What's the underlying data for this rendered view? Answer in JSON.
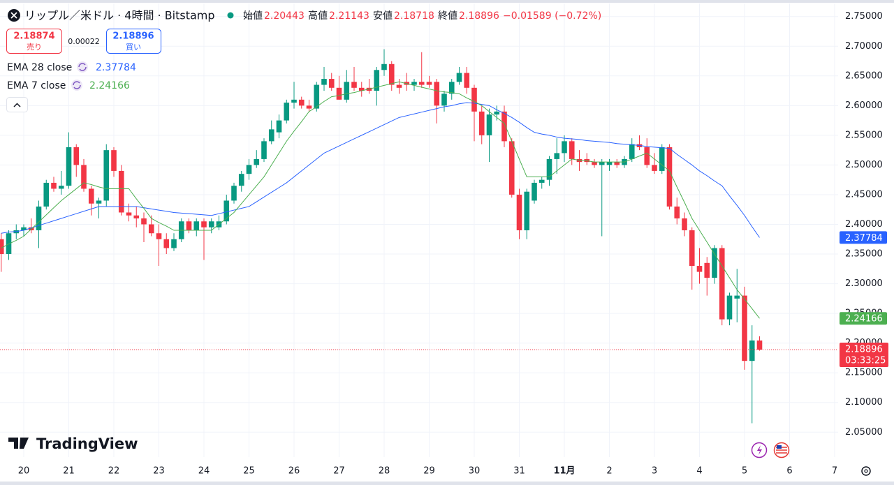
{
  "chart_data": {
    "type": "candlestick",
    "title": "リップル／米ドル · 4時間 · Bitstamp",
    "ohlc_labels": {
      "open": "始値",
      "high": "高値",
      "low": "安値",
      "close": "終値"
    },
    "change": "−0.01589 (−0.72%)",
    "trade": {
      "sell": 2.18874,
      "sell_label": "売り",
      "spread": 0.00022,
      "buy_label": "買い"
    },
    "countdown": "03:33:25",
    "watermark": "TradingView",
    "up_color": "#089981",
    "down_color": "#f23645",
    "grid": true,
    "categories": [
      null,
      null,
      null,
      "20",
      null,
      null,
      null,
      null,
      null,
      "21",
      null,
      null,
      null,
      null,
      null,
      "22",
      null,
      null,
      null,
      null,
      null,
      "23",
      null,
      null,
      null,
      null,
      null,
      "24",
      null,
      null,
      null,
      null,
      null,
      "25",
      null,
      null,
      null,
      null,
      null,
      "26",
      null,
      null,
      null,
      null,
      null,
      "27",
      null,
      null,
      null,
      null,
      null,
      "28",
      null,
      null,
      null,
      null,
      null,
      "29",
      null,
      null,
      null,
      null,
      null,
      "30",
      null,
      null,
      null,
      null,
      null,
      "31",
      null,
      null,
      null,
      null,
      null,
      "11月",
      null,
      null,
      null,
      null,
      null,
      "2",
      null,
      null,
      null,
      null,
      null,
      "3",
      null,
      null,
      null,
      null,
      null,
      "4",
      null,
      null,
      null,
      null,
      null,
      "5",
      null,
      null,
      null,
      null,
      null,
      "6",
      null,
      null,
      null,
      null,
      null,
      "7"
    ],
    "ohlc": {
      "open": [
        2.375,
        2.35,
        2.385,
        2.39,
        2.395,
        2.39,
        2.43,
        2.47,
        2.46,
        2.465,
        2.53,
        2.5,
        2.46,
        2.435,
        2.44,
        2.525,
        2.49,
        2.42,
        2.415,
        2.41,
        2.4,
        2.385,
        2.375,
        2.36,
        2.375,
        2.405,
        2.39,
        2.405,
        2.395,
        2.395,
        2.405,
        2.44,
        2.465,
        2.485,
        2.5,
        2.51,
        2.54,
        2.555,
        2.575,
        2.605,
        2.61,
        2.6,
        2.595,
        2.635,
        2.645,
        2.63,
        2.61,
        2.64,
        2.63,
        2.63,
        2.625,
        2.66,
        2.67,
        2.635,
        2.64,
        2.635,
        2.64,
        2.64,
        2.64,
        2.6,
        2.62,
        2.64,
        2.655,
        2.63,
        2.59,
        2.55,
        2.585,
        2.59,
        2.54,
        2.45,
        2.39,
        2.44,
        2.47,
        2.475,
        2.51,
        2.52,
        2.54,
        2.51,
        2.51,
        2.505,
        2.5,
        2.5,
        2.505,
        2.5,
        2.51,
        2.535,
        2.53,
        2.5,
        2.49,
        2.53,
        2.43,
        2.41,
        2.39,
        2.33,
        2.335,
        2.31,
        2.36,
        2.24,
        2.275,
        2.28,
        2.17,
        2.20443,
        null,
        null,
        null,
        null,
        null,
        null,
        null,
        null,
        null,
        null
      ],
      "high": [
        2.385,
        2.39,
        2.4,
        2.4,
        2.41,
        2.44,
        2.475,
        2.48,
        2.49,
        2.555,
        2.535,
        2.51,
        2.465,
        2.445,
        2.535,
        2.53,
        2.5,
        2.435,
        2.43,
        2.42,
        2.415,
        2.4,
        2.385,
        2.385,
        2.41,
        2.41,
        2.41,
        2.41,
        2.41,
        2.415,
        2.45,
        2.47,
        2.49,
        2.51,
        2.525,
        2.545,
        2.575,
        2.585,
        2.61,
        2.64,
        2.615,
        2.61,
        2.64,
        2.665,
        2.655,
        2.65,
        2.66,
        2.665,
        2.64,
        2.645,
        2.665,
        2.695,
        2.675,
        2.645,
        2.655,
        2.645,
        2.69,
        2.65,
        2.645,
        2.625,
        2.645,
        2.665,
        2.665,
        2.635,
        2.6,
        2.595,
        2.6,
        2.6,
        2.545,
        2.46,
        2.46,
        2.475,
        2.48,
        2.515,
        2.545,
        2.55,
        2.545,
        2.525,
        2.52,
        2.51,
        2.51,
        2.51,
        2.51,
        2.515,
        2.545,
        2.55,
        2.545,
        2.52,
        2.535,
        2.535,
        2.445,
        2.42,
        2.395,
        2.36,
        2.345,
        2.365,
        2.365,
        2.285,
        2.325,
        2.295,
        2.23,
        2.21143,
        null,
        null,
        null,
        null,
        null,
        null,
        null,
        null,
        null,
        null
      ],
      "low": [
        2.32,
        2.34,
        2.375,
        2.38,
        2.385,
        2.36,
        2.425,
        2.455,
        2.45,
        2.46,
        2.48,
        2.455,
        2.415,
        2.41,
        2.43,
        2.48,
        2.415,
        2.405,
        2.395,
        2.37,
        2.38,
        2.33,
        2.35,
        2.355,
        2.37,
        2.385,
        2.38,
        2.34,
        2.385,
        2.39,
        2.4,
        2.435,
        2.455,
        2.475,
        2.495,
        2.505,
        2.535,
        2.545,
        2.57,
        2.595,
        2.595,
        2.59,
        2.59,
        2.625,
        2.625,
        2.61,
        2.605,
        2.625,
        2.615,
        2.62,
        2.6,
        2.65,
        2.625,
        2.62,
        2.625,
        2.625,
        2.63,
        2.63,
        2.57,
        2.59,
        2.61,
        2.635,
        2.62,
        2.54,
        2.535,
        2.505,
        2.575,
        2.53,
        2.445,
        2.375,
        2.375,
        2.435,
        2.46,
        2.465,
        2.485,
        2.505,
        2.5,
        2.49,
        2.5,
        2.495,
        2.38,
        2.49,
        2.495,
        2.495,
        2.505,
        2.525,
        2.495,
        2.485,
        2.485,
        2.425,
        2.4,
        2.38,
        2.29,
        2.3,
        2.28,
        2.3,
        2.23,
        2.23,
        2.235,
        2.155,
        2.065,
        2.18718,
        null,
        null,
        null,
        null,
        null,
        null,
        null,
        null,
        null,
        null
      ],
      "close": [
        2.35,
        2.385,
        2.39,
        2.395,
        2.39,
        2.43,
        2.47,
        2.46,
        2.465,
        2.53,
        2.5,
        2.46,
        2.435,
        2.44,
        2.525,
        2.49,
        2.42,
        2.415,
        2.41,
        2.4,
        2.385,
        2.375,
        2.36,
        2.375,
        2.405,
        2.39,
        2.405,
        2.395,
        2.405,
        2.405,
        2.44,
        2.465,
        2.485,
        2.5,
        2.51,
        2.54,
        2.56,
        2.575,
        2.605,
        2.61,
        2.6,
        2.595,
        2.635,
        2.645,
        2.63,
        2.61,
        2.64,
        2.63,
        2.625,
        2.625,
        2.66,
        2.67,
        2.635,
        2.63,
        2.635,
        2.64,
        2.635,
        2.635,
        2.6,
        2.62,
        2.64,
        2.655,
        2.63,
        2.59,
        2.55,
        2.585,
        2.59,
        2.54,
        2.45,
        2.39,
        2.455,
        2.47,
        2.475,
        2.51,
        2.52,
        2.54,
        2.51,
        2.505,
        2.505,
        2.5,
        2.505,
        2.505,
        2.5,
        2.51,
        2.535,
        2.53,
        2.5,
        2.49,
        2.53,
        2.43,
        2.41,
        2.39,
        2.33,
        2.32,
        2.31,
        2.36,
        2.24,
        2.28,
        2.28,
        2.17,
        2.20443,
        2.18896,
        null,
        null,
        null,
        null,
        null,
        null,
        null,
        null,
        null,
        null
      ]
    },
    "series": [
      {
        "name": "EMA 28 close",
        "color": "#2962ff",
        "values": [
          2.385,
          2.387,
          2.388,
          2.39,
          2.394,
          2.398,
          2.402,
          2.406,
          2.41,
          2.414,
          2.418,
          2.422,
          2.426,
          2.43,
          2.43,
          2.43,
          2.43,
          2.43,
          2.43,
          2.428,
          2.426,
          2.424,
          2.422,
          2.42,
          2.419,
          2.418,
          2.417,
          2.416,
          2.415,
          2.418,
          2.421,
          2.424,
          2.427,
          2.43,
          2.438,
          2.446,
          2.454,
          2.462,
          2.47,
          2.48,
          2.49,
          2.5,
          2.51,
          2.52,
          2.526,
          2.532,
          2.538,
          2.544,
          2.55,
          2.556,
          2.562,
          2.568,
          2.574,
          2.58,
          2.583,
          2.586,
          2.589,
          2.592,
          2.595,
          2.598,
          2.6,
          2.603,
          2.605,
          2.604,
          2.602,
          2.6,
          2.593,
          2.587,
          2.58,
          2.572,
          2.563,
          2.555,
          2.552,
          2.55,
          2.547,
          2.545,
          2.544,
          2.543,
          2.541,
          2.54,
          2.539,
          2.538,
          2.536,
          2.535,
          2.534,
          2.533,
          2.531,
          2.53,
          2.529,
          2.528,
          2.518,
          2.509,
          2.5,
          2.49,
          2.482,
          2.473,
          2.465,
          2.448,
          2.432,
          2.415,
          2.396,
          2.37784,
          null,
          null,
          null,
          null,
          null,
          null,
          null,
          null,
          null,
          null
        ]
      },
      {
        "name": "EMA 7 close",
        "color": "#4caf50",
        "values": [
          2.36,
          2.367,
          2.373,
          2.38,
          2.392,
          2.404,
          2.416,
          2.428,
          2.44,
          2.45,
          2.46,
          2.47,
          2.467,
          2.463,
          2.46,
          2.46,
          2.46,
          2.46,
          2.443,
          2.427,
          2.41,
          2.403,
          2.397,
          2.39,
          2.39,
          2.39,
          2.39,
          2.39,
          2.39,
          2.4,
          2.41,
          2.42,
          2.435,
          2.45,
          2.465,
          2.48,
          2.5,
          2.52,
          2.54,
          2.557,
          2.573,
          2.59,
          2.598,
          2.607,
          2.615,
          2.617,
          2.62,
          2.622,
          2.625,
          2.628,
          2.631,
          2.634,
          2.637,
          2.64,
          2.637,
          2.634,
          2.631,
          2.628,
          2.625,
          2.623,
          2.622,
          2.62,
          2.613,
          2.607,
          2.6,
          2.59,
          2.58,
          2.57,
          2.54,
          2.51,
          2.48,
          2.48,
          2.48,
          2.48,
          2.49,
          2.5,
          2.51,
          2.508,
          2.507,
          2.505,
          2.505,
          2.505,
          2.505,
          2.505,
          2.51,
          2.515,
          2.52,
          2.51,
          2.5,
          2.49,
          2.463,
          2.437,
          2.41,
          2.39,
          2.37,
          2.35,
          2.33,
          2.31,
          2.29,
          2.274,
          2.258,
          2.24166,
          null,
          null,
          null,
          null,
          null,
          null,
          null,
          null,
          null,
          null
        ]
      }
    ],
    "ylim": [
      2.008,
      2.772
    ],
    "yticks": [
      {
        "value": 2.05,
        "label": "2.05000"
      },
      {
        "value": 2.1,
        "label": "2.10000"
      },
      {
        "value": 2.15,
        "label": "2.15000"
      },
      {
        "value": 2.2,
        "label": "2.20000"
      },
      {
        "value": 2.25,
        "label": "2.25000"
      },
      {
        "value": 2.3,
        "label": "2.30000"
      },
      {
        "value": 2.35,
        "label": "2.35000"
      },
      {
        "value": 2.4,
        "label": "2.40000"
      },
      {
        "value": 2.45,
        "label": "2.45000"
      },
      {
        "value": 2.5,
        "label": "2.50000"
      },
      {
        "value": 2.55,
        "label": "2.55000"
      },
      {
        "value": 2.6,
        "label": "2.60000"
      },
      {
        "value": 2.65,
        "label": "2.65000"
      },
      {
        "value": 2.7,
        "label": "2.70000"
      },
      {
        "value": 2.75,
        "label": "2.75000"
      }
    ]
  }
}
